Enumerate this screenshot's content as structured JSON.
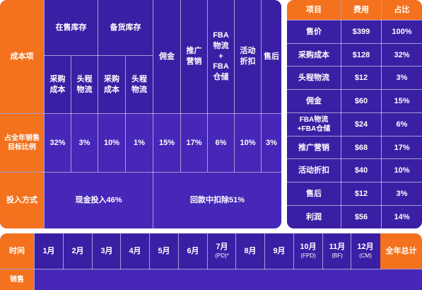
{
  "left_table": {
    "row_header": "成本项",
    "inventory_local": "在售库存",
    "inventory_backup": "备货库存",
    "purchase_cost": "采购成本",
    "first_leg": "头程物流",
    "commission": "佣金",
    "promotion": "推广营销",
    "fba": [
      "FBA",
      "物流",
      "+",
      "FBA",
      "仓储"
    ],
    "discount": "活动折扣",
    "after_sales": "售后",
    "ratio_label": "占全年销售目标比例",
    "ratios": [
      "32%",
      "3%",
      "10%",
      "1%",
      "15%",
      "17%",
      "6%",
      "10%",
      "3%"
    ],
    "input_label": "投入方式",
    "cash_input": "现金投入46%",
    "refund_deduct": "回款中扣除51%"
  },
  "right_table": {
    "headers": [
      "项目",
      "费用",
      "占比"
    ],
    "rows": [
      {
        "item": "售价",
        "cost": "$399",
        "pct": "100%"
      },
      {
        "item": "采购成本",
        "cost": "$128",
        "pct": "32%"
      },
      {
        "item": "头程物流",
        "cost": "$12",
        "pct": "3%"
      },
      {
        "item": "佣金",
        "cost": "$60",
        "pct": "15%"
      },
      {
        "item": "FBA物流\n+FBA仓储",
        "cost": "$24",
        "pct": "6%"
      },
      {
        "item": "推广营销",
        "cost": "$68",
        "pct": "17%"
      },
      {
        "item": "活动折扣",
        "cost": "$40",
        "pct": "10%"
      },
      {
        "item": "售后",
        "cost": "$12",
        "pct": "3%"
      },
      {
        "item": "利润",
        "cost": "$56",
        "pct": "14%"
      }
    ]
  },
  "bottom_table": {
    "time_label": "时间",
    "months": [
      {
        "m": "1月",
        "s": ""
      },
      {
        "m": "2月",
        "s": ""
      },
      {
        "m": "3月",
        "s": ""
      },
      {
        "m": "4月",
        "s": ""
      },
      {
        "m": "5月",
        "s": ""
      },
      {
        "m": "6月",
        "s": ""
      },
      {
        "m": "7月",
        "s": "(PD)*"
      },
      {
        "m": "8月",
        "s": ""
      },
      {
        "m": "9月",
        "s": ""
      },
      {
        "m": "10月",
        "s": "(FPD)"
      },
      {
        "m": "11月",
        "s": "(BF)"
      },
      {
        "m": "12月",
        "s": "(CM)"
      }
    ],
    "total_label": "全年总计",
    "second_row_label": "销售"
  },
  "colors": {
    "orange": "#f4721e",
    "purple": "#3a1fa4",
    "purple_light": "#4627b8"
  }
}
